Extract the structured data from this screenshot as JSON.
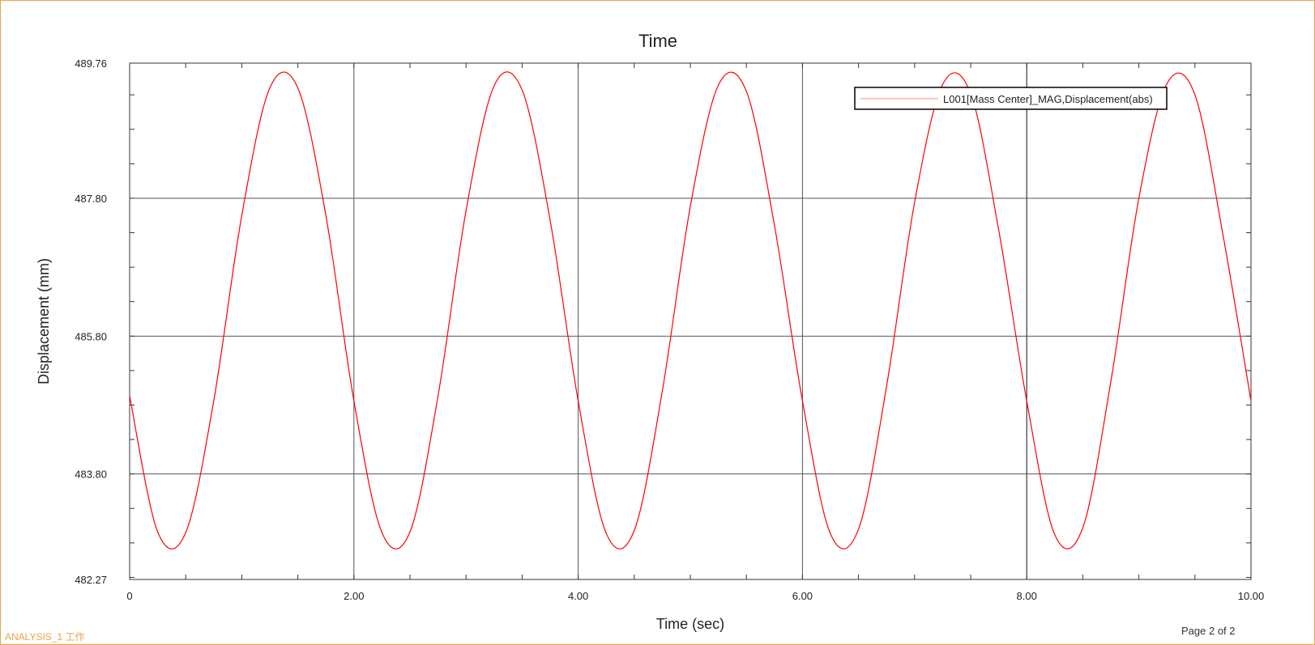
{
  "footer": {
    "analysis_label": "ANALYSIS_1 工作",
    "page_label": "Page 2 of 2"
  },
  "colors": {
    "frame": "#f0a04b",
    "series": "#ff0000",
    "legend_line": "#ffb0b0",
    "grid": "#555555",
    "axis": "#333333",
    "text": "#222222"
  },
  "chart_data": {
    "type": "line",
    "title": "Time",
    "xlabel": "Time (sec)",
    "ylabel": "Displacement (mm)",
    "xlim": [
      0,
      10
    ],
    "ylim": [
      482.27,
      489.76
    ],
    "x_ticks": [
      "0",
      "2.00",
      "4.00",
      "6.00",
      "8.00",
      "10.00"
    ],
    "y_ticks": [
      "482.27",
      "483.80",
      "485.80",
      "487.80",
      "489.76"
    ],
    "x_tick_values": [
      0,
      2,
      4,
      6,
      8,
      10
    ],
    "y_tick_values": [
      482.27,
      483.8,
      485.8,
      487.8,
      489.76
    ],
    "grid": true,
    "legend_position": "top-right",
    "series": [
      {
        "name": "L001[Mass Center]_MAG,Displacement(abs)",
        "x": [
          0,
          0.25,
          0.5,
          0.75,
          1.0,
          1.25,
          1.5,
          1.75,
          2.0,
          2.25,
          2.5,
          2.75,
          3.0,
          3.25,
          3.5,
          3.75,
          4.0,
          4.25,
          4.5,
          4.75,
          5.0,
          5.25,
          5.5,
          5.75,
          6.0,
          6.25,
          6.5,
          6.75,
          7.0,
          7.25,
          7.5,
          7.75,
          8.0,
          8.25,
          8.5,
          8.75,
          9.0,
          9.25,
          9.5,
          9.75,
          10.0
        ],
        "values": [
          484.93,
          482.96,
          482.95,
          484.86,
          487.55,
          489.4,
          489.4,
          487.55,
          484.86,
          482.95,
          482.96,
          484.93,
          487.62,
          489.43,
          489.37,
          487.48,
          484.86,
          482.94,
          482.98,
          485.0,
          487.68,
          489.44,
          489.35,
          487.41,
          484.86,
          482.93,
          483.0,
          485.07,
          487.74,
          489.45,
          489.32,
          487.34,
          484.86,
          482.92,
          483.02,
          485.14,
          487.8,
          489.46,
          489.3,
          487.27,
          484.86
        ]
      }
    ]
  }
}
